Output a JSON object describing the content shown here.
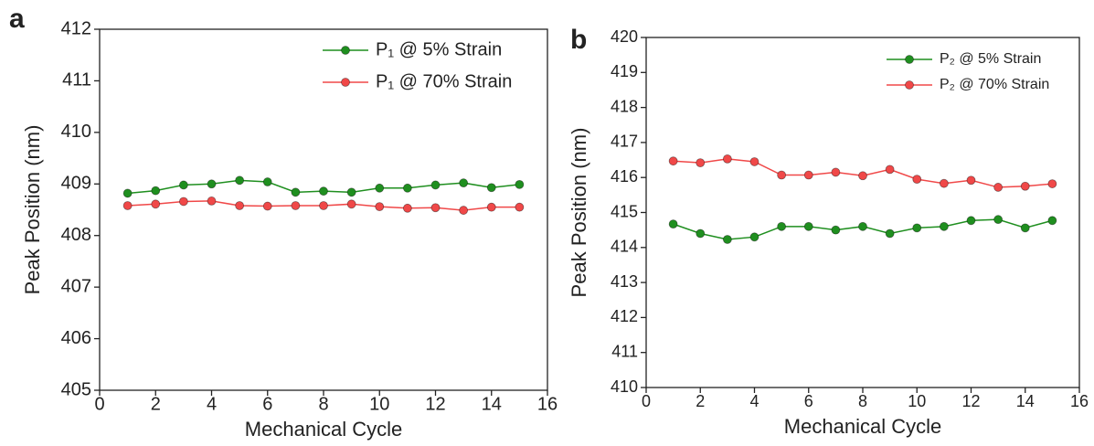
{
  "chart_data": [
    {
      "type": "line",
      "panel": "a",
      "x_label": "Mechanical Cycle",
      "y_label": "Peak Position (nm)",
      "x": [
        1,
        2,
        3,
        4,
        5,
        6,
        7,
        8,
        9,
        10,
        11,
        12,
        13,
        14,
        15
      ],
      "xlim": [
        0,
        16
      ],
      "xticks": [
        0,
        2,
        4,
        6,
        8,
        10,
        12,
        14,
        16
      ],
      "ylim": [
        405,
        412
      ],
      "yticks": [
        405,
        406,
        407,
        408,
        409,
        410,
        411,
        412
      ],
      "legend": "upper right",
      "series": [
        {
          "name": "P₁ @ 5% Strain",
          "color": "#1f8f1f",
          "values": [
            408.82,
            408.87,
            408.98,
            409.0,
            409.07,
            409.04,
            408.84,
            408.86,
            408.84,
            408.92,
            408.92,
            408.98,
            409.02,
            408.93,
            408.99
          ]
        },
        {
          "name": "P₁ @ 70% Strain",
          "color": "#f04848",
          "values": [
            408.58,
            408.61,
            408.66,
            408.67,
            408.58,
            408.57,
            408.58,
            408.58,
            408.61,
            408.56,
            408.53,
            408.54,
            408.49,
            408.55,
            408.55
          ]
        }
      ]
    },
    {
      "type": "line",
      "panel": "b",
      "x_label": "Mechanical Cycle",
      "y_label": "Peak Position (nm)",
      "x": [
        1,
        2,
        3,
        4,
        5,
        6,
        7,
        8,
        9,
        10,
        11,
        12,
        13,
        14,
        15
      ],
      "xlim": [
        0,
        16
      ],
      "xticks": [
        0,
        2,
        4,
        6,
        8,
        10,
        12,
        14,
        16
      ],
      "ylim": [
        410,
        420
      ],
      "yticks": [
        410,
        411,
        412,
        413,
        414,
        415,
        416,
        417,
        418,
        419,
        420
      ],
      "legend": "upper right",
      "series": [
        {
          "name": "P₂ @ 5% Strain",
          "color": "#1f8f1f",
          "values": [
            414.67,
            414.4,
            414.23,
            414.3,
            414.6,
            414.6,
            414.5,
            414.6,
            414.4,
            414.56,
            414.6,
            414.77,
            414.8,
            414.56,
            414.77
          ]
        },
        {
          "name": "P₂ @ 70% Strain",
          "color": "#f04848",
          "values": [
            416.47,
            416.42,
            416.53,
            416.45,
            416.07,
            416.07,
            416.15,
            416.05,
            416.23,
            415.95,
            415.83,
            415.92,
            415.72,
            415.75,
            415.82
          ]
        }
      ]
    }
  ]
}
